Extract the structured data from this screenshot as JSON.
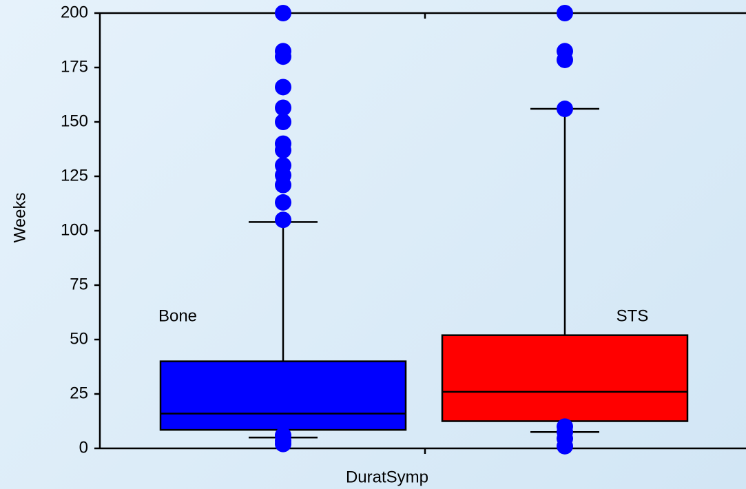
{
  "chart_data": {
    "type": "box",
    "x_label": "DuratSymp",
    "y_label": "Weeks",
    "ylim": [
      0,
      200
    ],
    "yticks": [
      0,
      25,
      50,
      75,
      100,
      125,
      150,
      175,
      200
    ],
    "series": [
      {
        "name": "Bone",
        "color": "#0000ff",
        "outlier_color": "#0000ff",
        "whislo": 5,
        "q1": 8.5,
        "med": 16,
        "q3": 40,
        "whishi": 104,
        "fliers": [
          200,
          182.5,
          180,
          166,
          156.5,
          150,
          140,
          137,
          130,
          125.5,
          121,
          113,
          105,
          6,
          3.5,
          2
        ]
      },
      {
        "name": "STS",
        "color": "#ff0000",
        "outlier_color": "#0000ff",
        "whislo": 7.5,
        "q1": 12.5,
        "med": 26,
        "q3": 52,
        "whishi": 156,
        "fliers": [
          200,
          182.5,
          178.5,
          156,
          10,
          7.5,
          4.5,
          1
        ]
      }
    ]
  }
}
